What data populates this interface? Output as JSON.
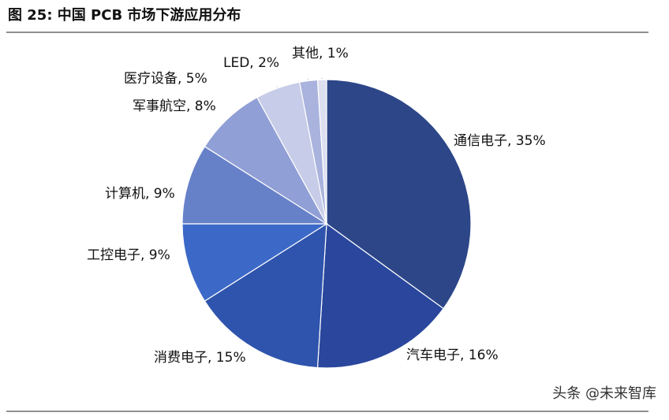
{
  "chart_data": {
    "type": "pie",
    "title": "图 25:  中国 PCB 市场下游应用分布",
    "values": [
      35,
      16,
      15,
      9,
      9,
      8,
      5,
      2,
      1
    ],
    "value_labels": [
      "通信电子, 35%",
      "汽车电子, 16%",
      "消费电子, 15%",
      "工控电子, 9%",
      "计算机, 9%",
      "军事航空, 8%",
      "医疗设备, 5%",
      "LED, 2%",
      "其他, 1%"
    ],
    "colors": [
      "#2c4688",
      "#2a479d",
      "#2f54ad",
      "#3c69c8",
      "#6781c9",
      "#909fd5",
      "#c7cce8",
      "#a9b3dd",
      "#dcdff0"
    ],
    "watermark": "头条 @未来智库"
  }
}
